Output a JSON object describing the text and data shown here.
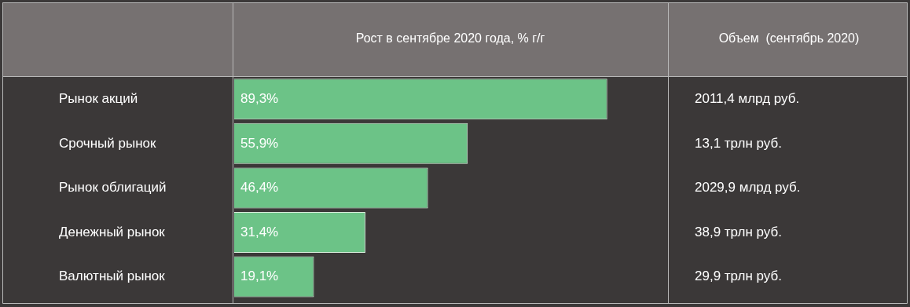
{
  "chart_data": {
    "type": "bar",
    "orientation": "horizontal",
    "xlabel": "Рост в сентябре 2020 года, % г/г",
    "categories": [
      "Рынок акций",
      "Срочный рынок",
      "Рынок облигаций",
      "Денежный рынок",
      "Валютный рынок"
    ],
    "values": [
      89.3,
      55.9,
      46.4,
      31.4,
      19.1
    ],
    "value_labels": [
      "89,3%",
      "55,9%",
      "46,4%",
      "31,4%",
      "19,1%"
    ],
    "color": "#6cc387",
    "annotations": [
      "Объем  (сентябрь 2020)",
      "2011,4 млрд руб.",
      "13,1 трлн руб.",
      "2029,9 млрд руб.",
      "38,9 трлн руб.",
      "29,9 трлн руб."
    ]
  }
}
